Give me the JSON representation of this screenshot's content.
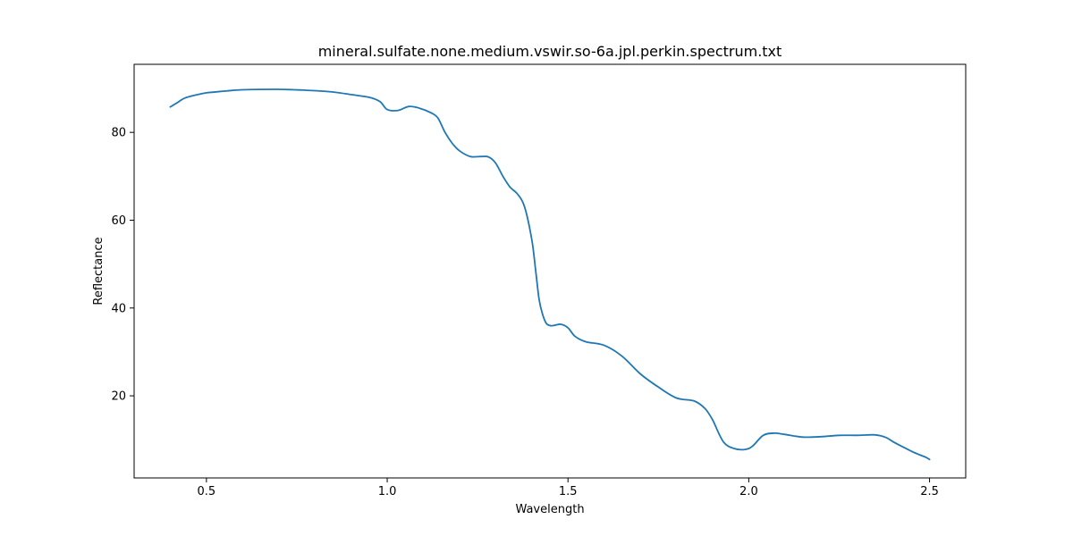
{
  "chart_data": {
    "type": "line",
    "title": "mineral.sulfate.none.medium.vswir.so-6a.jpl.perkin.spectrum.txt",
    "xlabel": "Wavelength",
    "ylabel": "Reflectance",
    "xlim": [
      0.3,
      2.6
    ],
    "ylim": [
      1.3,
      95.5
    ],
    "grid": false,
    "legend": "none",
    "x_ticks": [
      {
        "value": 0.5,
        "label": "0.5"
      },
      {
        "value": 1.0,
        "label": "1.0"
      },
      {
        "value": 1.5,
        "label": "1.5"
      },
      {
        "value": 2.0,
        "label": "2.0"
      },
      {
        "value": 2.5,
        "label": "2.5"
      }
    ],
    "y_ticks": [
      {
        "value": 20,
        "label": "20"
      },
      {
        "value": 40,
        "label": "40"
      },
      {
        "value": 60,
        "label": "60"
      },
      {
        "value": 80,
        "label": "80"
      }
    ],
    "series": [
      {
        "color": "#1f77b4",
        "x": [
          0.4,
          0.42,
          0.44,
          0.47,
          0.5,
          0.55,
          0.6,
          0.7,
          0.8,
          0.85,
          0.9,
          0.95,
          0.98,
          1.0,
          1.03,
          1.06,
          1.09,
          1.12,
          1.14,
          1.16,
          1.18,
          1.2,
          1.23,
          1.26,
          1.28,
          1.3,
          1.32,
          1.34,
          1.36,
          1.38,
          1.4,
          1.41,
          1.42,
          1.43,
          1.44,
          1.45,
          1.46,
          1.48,
          1.5,
          1.52,
          1.55,
          1.6,
          1.65,
          1.7,
          1.75,
          1.8,
          1.85,
          1.88,
          1.9,
          1.93,
          1.96,
          1.99,
          2.01,
          2.04,
          2.07,
          2.1,
          2.15,
          2.2,
          2.25,
          2.3,
          2.35,
          2.38,
          2.4,
          2.43,
          2.46,
          2.49,
          2.5
        ],
        "y": [
          85.8,
          86.8,
          87.8,
          88.5,
          89.0,
          89.4,
          89.7,
          89.8,
          89.5,
          89.2,
          88.6,
          88.0,
          87.0,
          85.2,
          85.0,
          85.9,
          85.5,
          84.5,
          83.3,
          80.0,
          77.5,
          75.8,
          74.5,
          74.5,
          74.4,
          73.0,
          70.0,
          67.5,
          66.0,
          63.0,
          55.5,
          49.0,
          42.0,
          38.5,
          36.5,
          36.0,
          36.0,
          36.3,
          35.5,
          33.5,
          32.3,
          31.5,
          29.0,
          25.0,
          22.0,
          19.5,
          18.8,
          17.0,
          14.5,
          9.5,
          8.0,
          7.8,
          8.5,
          11.0,
          11.5,
          11.2,
          10.6,
          10.7,
          11.0,
          11.0,
          11.1,
          10.5,
          9.5,
          8.2,
          7.0,
          6.0,
          5.5
        ]
      }
    ]
  }
}
